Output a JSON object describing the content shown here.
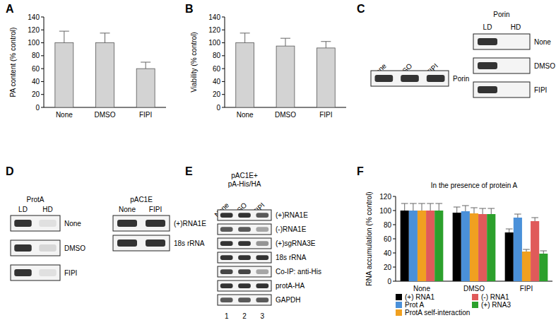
{
  "panel_labels": [
    "A",
    "B",
    "C",
    "D",
    "E",
    "F"
  ],
  "chart_data": [
    {
      "type": "bar",
      "y_label": "PA content (% control)",
      "categories": [
        "None",
        "DMSO",
        "FIPI"
      ],
      "values": [
        100,
        100,
        60
      ],
      "errors": [
        18,
        15,
        10
      ],
      "color": "#d3d3d3",
      "ylim": [
        0,
        140
      ],
      "yticks": [
        0,
        20,
        40,
        60,
        80,
        100,
        120,
        140
      ],
      "grid": false
    },
    {
      "type": "bar",
      "y_label": "Viability (% control)",
      "categories": [
        "None",
        "DMSO",
        "FIPI"
      ],
      "values": [
        100,
        95,
        92
      ],
      "errors": [
        15,
        12,
        10
      ],
      "color": "#d3d3d3",
      "ylim": [
        0,
        140
      ],
      "yticks": [
        0,
        20,
        40,
        60,
        80,
        100,
        120,
        140
      ],
      "grid": false
    },
    {
      "type": "bar",
      "title": "In the presence of protein A",
      "y_label": "RNA accumulation (% control)",
      "categories": [
        "None",
        "DMSO",
        "FIPI"
      ],
      "series": [
        {
          "name": "(+) RNA1",
          "color": "#000000",
          "values": [
            100,
            97,
            69
          ],
          "errors": [
            10,
            8,
            5
          ]
        },
        {
          "name": "Prot A",
          "color": "#4a90d9",
          "values": [
            100,
            99,
            90
          ],
          "errors": [
            10,
            8,
            5
          ]
        },
        {
          "name": "ProtA self-interaction",
          "color": "#f0a020",
          "values": [
            100,
            96,
            42
          ],
          "errors": [
            10,
            8,
            3
          ]
        },
        {
          "name": "(-) RNA1",
          "color": "#e05a5a",
          "values": [
            100,
            95,
            85
          ],
          "errors": [
            10,
            8,
            5
          ]
        },
        {
          "name": "(+) RNA3",
          "color": "#2ca02c",
          "values": [
            100,
            95,
            39
          ],
          "errors": [
            10,
            8,
            4
          ]
        }
      ],
      "ylim": [
        0,
        120
      ],
      "yticks": [
        0,
        20,
        40,
        60,
        80,
        100,
        120
      ],
      "grid": false,
      "legend": "bottom"
    }
  ],
  "blots": [
    {
      "header": [],
      "lanes": [
        "None",
        "DMSO",
        "FIPI"
      ],
      "rows": [
        {
          "label": "Porin",
          "bands": [
            1,
            1,
            1
          ]
        }
      ]
    },
    {
      "header": [
        "Porin"
      ],
      "lanes": [
        "LD",
        "HD"
      ],
      "rows": [
        {
          "label": "None",
          "bands": [
            1,
            0
          ]
        },
        {
          "label": "DMSO",
          "bands": [
            1,
            0
          ]
        },
        {
          "label": "FIPI",
          "bands": [
            1,
            0
          ]
        }
      ]
    },
    {
      "header": [
        "ProtA"
      ],
      "lanes": [
        "LD",
        "HD"
      ],
      "rows": [
        {
          "label": "None",
          "bands": [
            1,
            0.1
          ]
        },
        {
          "label": "DMSO",
          "bands": [
            1,
            0.15
          ]
        },
        {
          "label": "FIPI",
          "bands": [
            1,
            0.1
          ]
        }
      ]
    },
    {
      "header": [
        "pAC1E"
      ],
      "lanes": [
        "None",
        "FIPI"
      ],
      "rows": [
        {
          "label": "(+)RNA1E",
          "bands": [
            1,
            1
          ]
        },
        {
          "label": "18s rRNA",
          "bands": [
            1,
            1
          ]
        }
      ]
    },
    {
      "header": [
        "pAC1E+",
        "pA-His/HA"
      ],
      "lanes": [
        "None",
        "DMSO",
        "FIPI"
      ],
      "lane_numbers": [
        "1",
        "2",
        "3"
      ],
      "rows": [
        {
          "label": "(+)RNA1E",
          "bands": [
            1,
            1,
            0.8
          ]
        },
        {
          "label": "(-)RNA1E",
          "bands": [
            0.8,
            0.8,
            0.4
          ]
        },
        {
          "label": "(+)sgRNA3E",
          "bands": [
            1,
            1,
            0.5
          ]
        },
        {
          "label": "18s rRNA",
          "bands": [
            1,
            1,
            1
          ]
        },
        {
          "label": "Co-IP: anti-His",
          "bands": [
            0.9,
            0.9,
            0.4
          ]
        },
        {
          "label": "protA-HA",
          "bands": [
            1,
            1,
            1
          ]
        },
        {
          "label": "GAPDH",
          "bands": [
            0.8,
            0.8,
            0.8
          ]
        }
      ]
    }
  ]
}
